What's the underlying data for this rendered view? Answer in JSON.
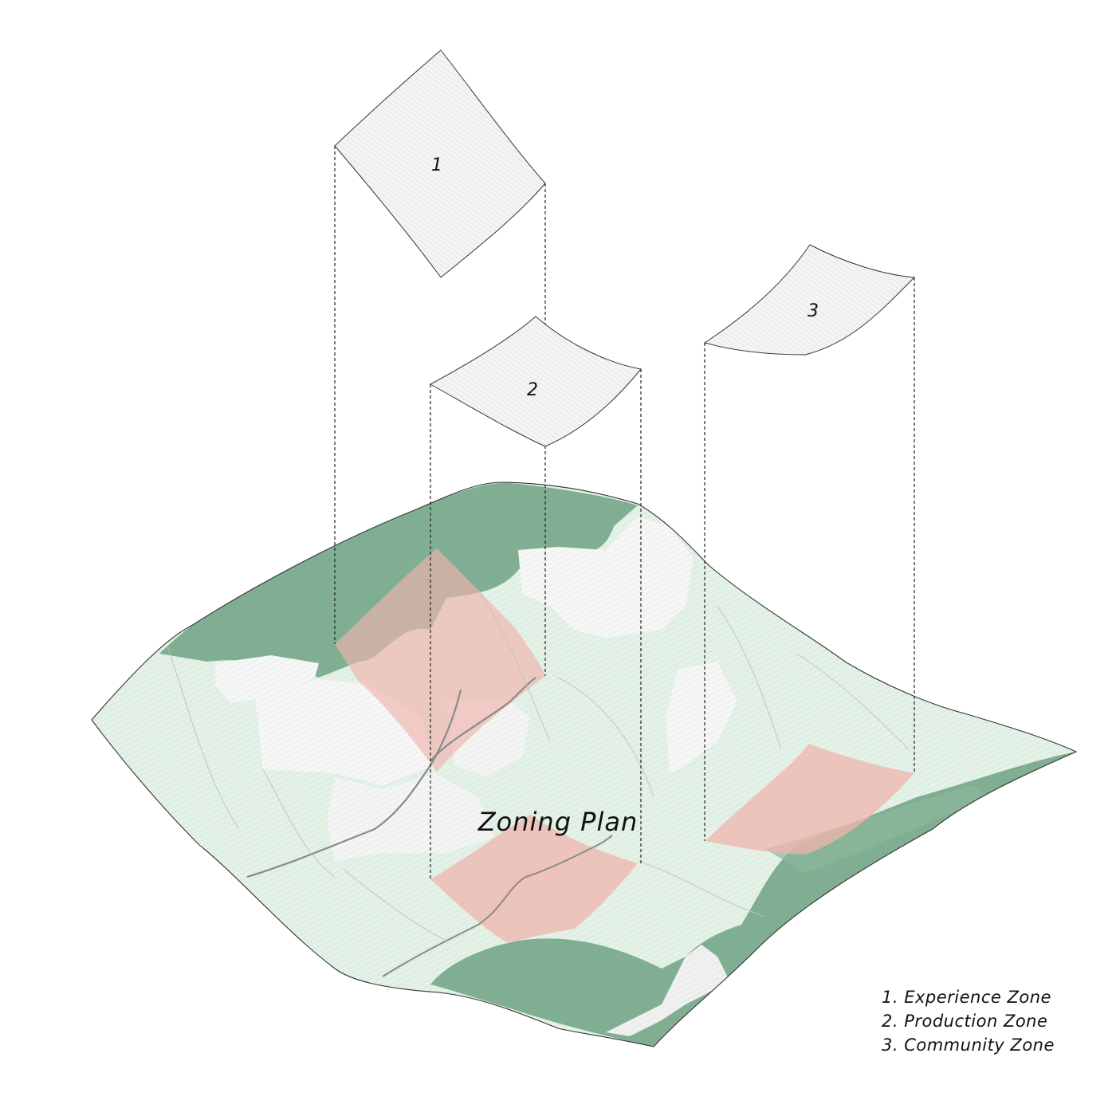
{
  "title": "Zoning Plan",
  "zones": [
    {
      "number": "1",
      "name": "Experience Zone"
    },
    {
      "number": "2",
      "name": "Production Zone"
    },
    {
      "number": "3",
      "name": "Community Zone"
    }
  ],
  "legend": [
    "1. Experience Zone",
    "2. Production Zone",
    "3. Community Zone"
  ],
  "colors": {
    "forest": "#7fae92",
    "meadow": "#e3f1e6",
    "clearing": "#f6f6f6",
    "zone_highlight": "#f0b4ad",
    "outline": "#333333"
  }
}
